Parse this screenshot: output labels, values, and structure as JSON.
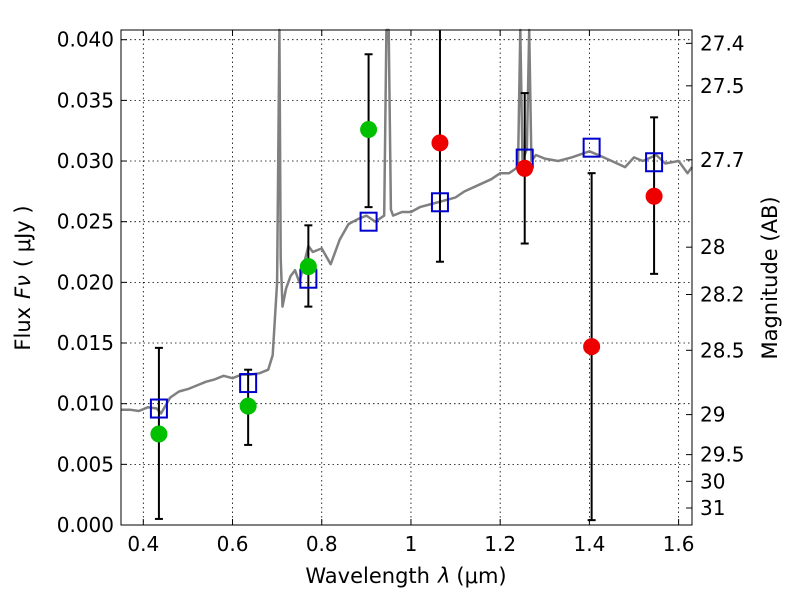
{
  "chart_data": {
    "type": "scatter",
    "title": "",
    "xlabel_main": "Wavelength",
    "xlabel_symbol": "λ",
    "xlabel_unit": "(μm)",
    "ylabel_main": "Flux",
    "ylabel_symbol": "Fν",
    "ylabel_unit": "( μJy )",
    "y2label": "Magnitude (AB)",
    "xlim": [
      0.35,
      1.63
    ],
    "ylim": [
      0.0,
      0.0408
    ],
    "x_ticks": [
      0.4,
      0.6,
      0.8,
      1.0,
      1.2,
      1.4,
      1.6
    ],
    "x_tick_labels": [
      "0.4",
      "0.6",
      "0.8",
      "1",
      "1.2",
      "1.4",
      "1.6"
    ],
    "y_ticks": [
      0.0,
      0.005,
      0.01,
      0.015,
      0.02,
      0.025,
      0.03,
      0.035,
      0.04
    ],
    "y_tick_labels": [
      "0.000",
      "0.005",
      "0.010",
      "0.015",
      "0.020",
      "0.025",
      "0.030",
      "0.035",
      "0.040"
    ],
    "y2_ticks": [
      {
        "label": "27.4",
        "flux": 0.0397
      },
      {
        "label": "27.5",
        "flux": 0.0362
      },
      {
        "label": "27.7",
        "flux": 0.0301
      },
      {
        "label": "28",
        "flux": 0.0229
      },
      {
        "label": "28.2",
        "flux": 0.019
      },
      {
        "label": "28.5",
        "flux": 0.0144
      },
      {
        "label": "29",
        "flux": 0.0091
      },
      {
        "label": "29.5",
        "flux": 0.0058
      },
      {
        "label": "30",
        "flux": 0.0036
      },
      {
        "label": "31",
        "flux": 0.0014
      }
    ],
    "grid": true,
    "series": [
      {
        "kind": "model_spectrum",
        "color": "#808080",
        "x": [
          0.35,
          0.37,
          0.39,
          0.41,
          0.43,
          0.44,
          0.46,
          0.48,
          0.5,
          0.52,
          0.54,
          0.56,
          0.58,
          0.6,
          0.62,
          0.64,
          0.66,
          0.68,
          0.69,
          0.7,
          0.705,
          0.708,
          0.712,
          0.72,
          0.73,
          0.74,
          0.75,
          0.76,
          0.77,
          0.78,
          0.8,
          0.82,
          0.84,
          0.86,
          0.88,
          0.9,
          0.92,
          0.94,
          0.945,
          0.95,
          0.955,
          0.96,
          0.98,
          1.0,
          1.02,
          1.05,
          1.08,
          1.1,
          1.12,
          1.15,
          1.18,
          1.2,
          1.22,
          1.24,
          1.245,
          1.25,
          1.26,
          1.265,
          1.27,
          1.28,
          1.3,
          1.33,
          1.36,
          1.4,
          1.42,
          1.45,
          1.48,
          1.5,
          1.52,
          1.55,
          1.57,
          1.6,
          1.62,
          1.63
        ],
        "y": [
          0.0095,
          0.0095,
          0.0094,
          0.0097,
          0.0096,
          0.0092,
          0.0105,
          0.011,
          0.0112,
          0.0115,
          0.0118,
          0.012,
          0.0123,
          0.0121,
          0.0124,
          0.0124,
          0.0125,
          0.0128,
          0.014,
          0.02,
          0.042,
          0.022,
          0.018,
          0.0195,
          0.0205,
          0.021,
          0.02,
          0.0215,
          0.023,
          0.0225,
          0.0228,
          0.0215,
          0.0235,
          0.0248,
          0.0252,
          0.0255,
          0.025,
          0.0255,
          0.042,
          0.042,
          0.026,
          0.0255,
          0.0258,
          0.0258,
          0.0262,
          0.0265,
          0.0268,
          0.027,
          0.0275,
          0.028,
          0.0285,
          0.029,
          0.029,
          0.0295,
          0.042,
          0.03,
          0.031,
          0.042,
          0.03,
          0.0305,
          0.0302,
          0.03,
          0.0303,
          0.0308,
          0.0305,
          0.03,
          0.0295,
          0.0303,
          0.03,
          0.0305,
          0.0298,
          0.03,
          0.029,
          0.0295
        ]
      },
      {
        "kind": "filter_points",
        "marker": "open_square",
        "color": "#0000cc",
        "x": [
          0.435,
          0.635,
          0.77,
          0.905,
          1.065,
          1.255,
          1.405,
          1.545
        ],
        "y": [
          0.0096,
          0.0117,
          0.0203,
          0.025,
          0.0266,
          0.0302,
          0.0311,
          0.0299
        ]
      },
      {
        "kind": "observed",
        "marker": "filled_circle",
        "color": "#00c000",
        "x": [
          0.435,
          0.635,
          0.77,
          0.905
        ],
        "y": [
          0.0075,
          0.0098,
          0.0213,
          0.0326
        ],
        "err_low": [
          0.0005,
          0.0066,
          0.018,
          0.0262
        ],
        "err_high": [
          0.0146,
          0.0128,
          0.0247,
          0.0388
        ]
      },
      {
        "kind": "observed",
        "marker": "filled_circle",
        "color": "#ee0000",
        "x": [
          1.065,
          1.255,
          1.405,
          1.545
        ],
        "y": [
          0.0315,
          0.0294,
          0.0147,
          0.0271
        ],
        "err_low": [
          0.0217,
          0.0232,
          0.0004,
          0.0207
        ],
        "err_high": [
          0.042,
          0.0356,
          0.029,
          0.0336
        ]
      }
    ]
  }
}
